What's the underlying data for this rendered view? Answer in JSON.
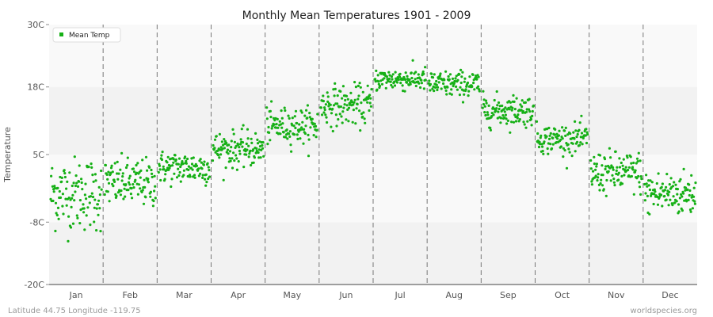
{
  "chart_data": {
    "type": "scatter",
    "title": "Monthly Mean Temperatures 1901 - 2009",
    "ylabel": "Temperature",
    "ylim": [
      -20,
      30
    ],
    "y_ticks": [
      {
        "value": -20,
        "label": "-20C"
      },
      {
        "value": -8,
        "label": "-8C"
      },
      {
        "value": 5,
        "label": "5C"
      },
      {
        "value": 18,
        "label": "18C"
      },
      {
        "value": 30,
        "label": "30C"
      }
    ],
    "categories": [
      "Jan",
      "Feb",
      "Mar",
      "Apr",
      "May",
      "Jun",
      "Jul",
      "Aug",
      "Sep",
      "Oct",
      "Nov",
      "Dec"
    ],
    "years": [
      1901,
      2009
    ],
    "series": [
      {
        "name": "Mean Temp",
        "color": "#16b016",
        "monthly_mean": [
          -2.5,
          -0.5,
          2.5,
          6.0,
          10.5,
          14.5,
          19.5,
          18.5,
          13.5,
          8.0,
          1.5,
          -2.5
        ],
        "monthly_spread": [
          3.5,
          2.3,
          1.6,
          1.7,
          1.7,
          1.9,
          1.1,
          1.3,
          1.5,
          1.4,
          2.0,
          2.2
        ]
      }
    ],
    "legend": {
      "position": "top-left"
    },
    "grid": true
  },
  "footer": {
    "location": "Latitude 44.75 Longitude -119.75",
    "source": "worldspecies.org"
  }
}
